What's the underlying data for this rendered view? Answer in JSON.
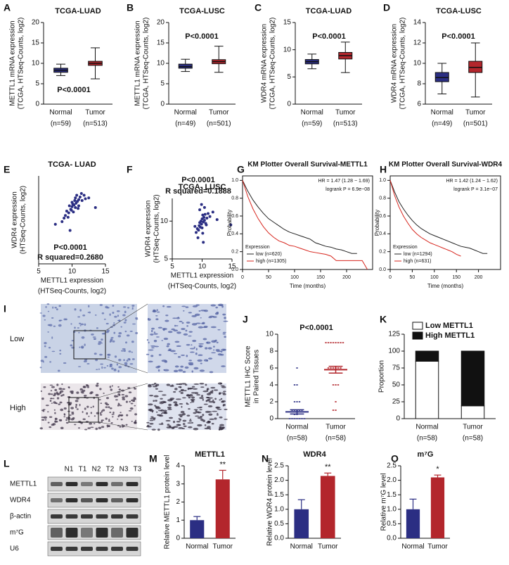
{
  "chart_data": [
    {
      "type": "box",
      "panel": "A",
      "title": "TCGA-LUAD",
      "ylabel": [
        "METTL1 mRNA expression",
        "(TCGA, HTSeq-Counts, log2)"
      ],
      "categories": [
        "Normal",
        "Tumor"
      ],
      "counts": [
        "(n=59)",
        "(n=513)"
      ],
      "colors": [
        "#2b2e83",
        "#b3262c"
      ],
      "boxes": [
        {
          "min": 7,
          "q1": 7.8,
          "median": 8.3,
          "q3": 8.8,
          "max": 9.8
        },
        {
          "min": 6.2,
          "q1": 9.5,
          "median": 10,
          "q3": 10.5,
          "max": 13.8
        }
      ],
      "ylim": [
        0,
        20
      ],
      "yticks": [
        0,
        5,
        10,
        15,
        20
      ],
      "annotations": [
        "P<0.0001"
      ]
    },
    {
      "type": "box",
      "panel": "B",
      "title": "TCGA-LUSC",
      "ylabel": [
        "METTL1 mRNA expression",
        "(TCGA, HTSeq-Counts, log2)"
      ],
      "categories": [
        "Normal",
        "Tumor"
      ],
      "counts": [
        "(n=49)",
        "(n=501)"
      ],
      "colors": [
        "#2b2e83",
        "#b3262c"
      ],
      "boxes": [
        {
          "min": 8,
          "q1": 8.8,
          "median": 9.2,
          "q3": 9.8,
          "max": 11
        },
        {
          "min": 7.8,
          "q1": 9.9,
          "median": 10.4,
          "q3": 10.9,
          "max": 14.2
        }
      ],
      "ylim": [
        0,
        20
      ],
      "yticks": [
        0,
        5,
        10,
        15,
        20
      ],
      "annotations": [
        "P<0.0001"
      ]
    },
    {
      "type": "box",
      "panel": "C",
      "title": "TCGA-LUAD",
      "ylabel": [
        "WDR4 mRNA expression",
        "(TCGA, HTSeq-Counts, log2)"
      ],
      "categories": [
        "Normal",
        "Tumor"
      ],
      "counts": [
        "(n=59)",
        "(n=513)"
      ],
      "colors": [
        "#2b2e83",
        "#b3262c"
      ],
      "boxes": [
        {
          "min": 6.5,
          "q1": 7.4,
          "median": 7.8,
          "q3": 8.2,
          "max": 9.2
        },
        {
          "min": 5.8,
          "q1": 8.3,
          "median": 8.9,
          "q3": 9.5,
          "max": 11.4
        }
      ],
      "ylim": [
        0,
        15
      ],
      "yticks": [
        0,
        5,
        10,
        15
      ],
      "annotations": [
        "P<0.0001"
      ]
    },
    {
      "type": "box",
      "panel": "D",
      "title": "TCGA-LUSC",
      "ylabel": [
        "WDR4 mRNA expression",
        "(TCGA, HTSeq-Counts, log2)"
      ],
      "categories": [
        "Normal",
        "Tumor"
      ],
      "counts": [
        "(n=49)",
        "(n=501)"
      ],
      "colors": [
        "#2b2e83",
        "#b3262c"
      ],
      "boxes": [
        {
          "min": 7,
          "q1": 8.2,
          "median": 8.6,
          "q3": 9.1,
          "max": 10
        },
        {
          "min": 6.7,
          "q1": 9.1,
          "median": 9.6,
          "q3": 10.2,
          "max": 12
        }
      ],
      "ylim": [
        6,
        14
      ],
      "yticks": [
        6,
        8,
        10,
        12,
        14
      ],
      "annotations": [
        "P<0.0001"
      ]
    },
    {
      "type": "scatter",
      "panel": "E",
      "title": "TCGA- LUAD",
      "ylabel": [
        "WDR4 expression",
        "(HTSeq-Counts, log2)"
      ],
      "xlabel": [
        "METTL1 expression",
        "(HTSeq-Counts, log2)"
      ],
      "color": "#2b2e83",
      "x": [
        8.5,
        9,
        9.2,
        9.5,
        9.6,
        9.8,
        10,
        10,
        10.1,
        10.2,
        10.3,
        10.4,
        10.5,
        10.5,
        10.6,
        10.8,
        11,
        11,
        11.2,
        11.5,
        11.8,
        12,
        9.4,
        9.9,
        10.7,
        10.9,
        8.8,
        11.4,
        12.5,
        7.5,
        13.5,
        9.7
      ],
      "values": [
        8.8,
        9.5,
        10,
        9.8,
        10.6,
        10.2,
        10.5,
        11,
        10.8,
        9.9,
        10.7,
        11.2,
        10.4,
        11.5,
        10.9,
        11.1,
        11.3,
        10.6,
        11.6,
        11.2,
        11.8,
        11.4,
        9.3,
        10.1,
        11.8,
        10.3,
        9.2,
        12,
        11.5,
        8.5,
        10.4,
        7.8
      ],
      "xlim": [
        5,
        15
      ],
      "xticks": [
        5,
        10,
        15
      ],
      "ylim": [
        4,
        14
      ],
      "annotations": [
        "P<0.0001",
        "R squared=0.2680"
      ]
    },
    {
      "type": "scatter",
      "panel": "F",
      "title": "TCGA- LUSC",
      "ylabel": [
        "WDR4 expression",
        "(HTSeq-Counts, log2)"
      ],
      "xlabel": [
        "METTL1 expression",
        "(HTSeq-Counts, log2)"
      ],
      "color": "#2b2e83",
      "x": [
        9,
        9.2,
        9.4,
        9.5,
        9.6,
        9.7,
        9.8,
        9.9,
        10,
        10,
        10.1,
        10.2,
        10.3,
        10.4,
        10.5,
        10.6,
        10.8,
        11,
        11.3,
        11.8,
        9.3,
        9.6,
        10.1,
        10.4,
        10.7,
        8.8,
        12.5,
        14.8,
        9.9,
        10.2
      ],
      "values": [
        8.5,
        9,
        8.8,
        9.4,
        9.8,
        9.2,
        10,
        9.6,
        10.3,
        9.1,
        10.8,
        9.9,
        10.5,
        10.1,
        10.9,
        9.7,
        10.4,
        11,
        10.6,
        11.2,
        7.8,
        11.5,
        8.4,
        11.8,
        9.5,
        9.3,
        10.2,
        9.5,
        12.2,
        7.2
      ],
      "xlim": [
        5,
        15
      ],
      "xticks": [
        5,
        10,
        15
      ],
      "ylim": [
        5,
        13
      ],
      "yticks": [
        5,
        10
      ],
      "annotations": [
        "P<0.0001",
        "R squared=0.1888"
      ]
    },
    {
      "type": "km",
      "panel": "G",
      "title": "KM Plotter Overall Survival-METTL1",
      "ylabel": "Probability",
      "xlabel": "Time (months)",
      "legend_title": "Expression",
      "x": [
        0,
        10,
        20,
        30,
        40,
        50,
        60,
        70,
        80,
        90,
        100,
        110,
        120,
        130,
        140,
        150,
        160,
        170,
        180,
        190,
        200,
        210,
        220,
        230,
        240
      ],
      "series": [
        {
          "name": "low (n=620)",
          "color": "#222222",
          "values": [
            1,
            0.88,
            0.78,
            0.7,
            0.63,
            0.57,
            0.53,
            0.49,
            0.45,
            0.42,
            0.4,
            0.38,
            0.36,
            0.34,
            0.3,
            0.28,
            0.26,
            0.25,
            0.23,
            0.22,
            0.2,
            0.18,
            0.18,
            null,
            null
          ]
        },
        {
          "name": "high (n=1305)",
          "color": "#d7261e",
          "values": [
            1,
            0.82,
            0.68,
            0.57,
            0.48,
            0.41,
            0.36,
            0.32,
            0.3,
            0.27,
            0.26,
            0.24,
            0.22,
            0.2,
            0.19,
            0.18,
            0.17,
            0.15,
            0.1,
            0.1,
            0.1,
            0.1,
            0.1,
            0.1,
            0
          ]
        }
      ],
      "xlim": [
        0,
        250
      ],
      "xticks": [
        0,
        50,
        100,
        150,
        200
      ],
      "ylim": [
        0,
        1.05
      ],
      "yticks": [
        {
          "value": 0,
          "label": "0.0"
        },
        {
          "value": 0.2,
          "label": "0.2"
        },
        {
          "value": 0.4,
          "label": "0.4"
        },
        {
          "value": 0.6,
          "label": "0.6"
        },
        {
          "value": 0.8,
          "label": "0.8"
        },
        {
          "value": 1,
          "label": "1.0"
        }
      ],
      "annotations": [
        "HR = 1.47 (1.28 − 1.69)",
        "logrank P = 6.9e−08"
      ]
    },
    {
      "type": "km",
      "panel": "H",
      "title": "KM Plotter Overall Survival-WDR4",
      "ylabel": "Probability",
      "xlabel": "Time (months)",
      "legend_title": "Expression",
      "x": [
        0,
        10,
        20,
        30,
        40,
        50,
        60,
        70,
        80,
        90,
        100,
        110,
        120,
        130,
        140,
        150,
        160,
        170,
        180,
        190,
        200,
        210,
        220,
        230,
        240
      ],
      "series": [
        {
          "name": "low (n=1294)",
          "color": "#222222",
          "values": [
            1,
            0.87,
            0.76,
            0.68,
            0.61,
            0.55,
            0.5,
            0.46,
            0.43,
            0.4,
            0.38,
            0.36,
            0.34,
            0.32,
            0.3,
            0.28,
            0.26,
            0.25,
            0.24,
            0.22,
            0.2,
            0.18,
            0.18,
            null,
            null
          ]
        },
        {
          "name": "high (n=631)",
          "color": "#d7261e",
          "values": [
            1,
            0.83,
            0.7,
            0.6,
            0.52,
            0.45,
            0.4,
            0.36,
            0.33,
            0.3,
            0.28,
            0.26,
            0.24,
            0.22,
            0.2,
            0.17,
            0.15,
            null,
            null,
            null,
            null,
            null,
            null,
            null,
            null
          ]
        }
      ],
      "xlim": [
        0,
        250
      ],
      "xticks": [
        0,
        50,
        100,
        150,
        200
      ],
      "ylim": [
        0,
        1.05
      ],
      "yticks": [
        {
          "value": 0,
          "label": "0.0"
        },
        {
          "value": 0.2,
          "label": "0.2"
        },
        {
          "value": 0.4,
          "label": "0.4"
        },
        {
          "value": 0.6,
          "label": "0.6"
        },
        {
          "value": 0.8,
          "label": "0.8"
        },
        {
          "value": 1,
          "label": "1.0"
        }
      ],
      "annotations": [
        "HR = 1.42 (1.24 − 1.62)",
        "logrank P = 3.1e−07"
      ]
    },
    {
      "type": "dot",
      "panel": "J",
      "ylabel": [
        "METTL1 IHC Score",
        "in Paired Tissues"
      ],
      "categories": [
        "Normal",
        "Tumor"
      ],
      "counts": [
        "(n=58)",
        "(n=58)"
      ],
      "colors": [
        "#2b2e83",
        "#b3262c"
      ],
      "points": [
        [
          0,
          0,
          0,
          0.5,
          0.5,
          1,
          1,
          1,
          1,
          0,
          0,
          2,
          2,
          2,
          4,
          4,
          6,
          1,
          0,
          0
        ],
        [
          9,
          9,
          9,
          9,
          9,
          9,
          9,
          9,
          6,
          6,
          6,
          6,
          6,
          6,
          4,
          4,
          4,
          2,
          1,
          1
        ]
      ],
      "means": [
        0.8,
        5.8
      ],
      "errors": [
        0.25,
        0.4
      ],
      "ylim": [
        0,
        10
      ],
      "yticks": [
        0,
        2,
        4,
        6,
        8,
        10
      ],
      "annotations": [
        "P<0.0001"
      ]
    },
    {
      "type": "stacked_bar",
      "panel": "K",
      "ylabel": "Proportion",
      "categories": [
        "Normal",
        "Tumor"
      ],
      "counts": [
        "(n=58)",
        "(n=58)"
      ],
      "series": [
        {
          "name": "Low METTL1",
          "color": "#ffffff",
          "values": [
            85,
            19
          ]
        },
        {
          "name": "High METTL1",
          "color": "#111111",
          "values": [
            15,
            81
          ]
        }
      ],
      "ylim": [
        0,
        125
      ],
      "yticks": [
        0,
        25,
        50,
        75,
        100,
        125
      ]
    },
    {
      "type": "bar",
      "panel": "M",
      "title": "METTL1",
      "ylabel": "Relative METTL1 protein level",
      "categories": [
        "Normal",
        "Tumor"
      ],
      "colors": [
        "#2b2e83",
        "#b3262c"
      ],
      "values": [
        1,
        3.25
      ],
      "errors": [
        0.2,
        0.5
      ],
      "significance": "**",
      "ylim": [
        0,
        4
      ],
      "yticks": [
        0,
        1,
        2,
        3,
        4
      ]
    },
    {
      "type": "bar",
      "panel": "N",
      "title": "WDR4",
      "ylabel": "Relative WDR4 protein level",
      "categories": [
        "Normal",
        "Tumor"
      ],
      "colors": [
        "#2b2e83",
        "#b3262c"
      ],
      "values": [
        1,
        2.15
      ],
      "errors": [
        0.33,
        0.1
      ],
      "significance": "**",
      "ylim": [
        0,
        2.5
      ],
      "yticks": [
        {
          "value": 0,
          "label": "0.0"
        },
        {
          "value": 0.5,
          "label": "0.5"
        },
        {
          "value": 1,
          "label": "1.0"
        },
        {
          "value": 1.5,
          "label": "1.5"
        },
        {
          "value": 2,
          "label": "2.0"
        },
        {
          "value": 2.5,
          "label": "2.5"
        }
      ]
    },
    {
      "type": "bar",
      "panel": "O",
      "title": "m⁷G",
      "ylabel": "Relative m⁷G level",
      "categories": [
        "Normal",
        "Tumor"
      ],
      "colors": [
        "#2b2e83",
        "#b3262c"
      ],
      "values": [
        1,
        2.1
      ],
      "errors": [
        0.35,
        0.08
      ],
      "significance": "*",
      "ylim": [
        0,
        2.5
      ],
      "yticks": [
        {
          "value": 0,
          "label": "0.0"
        },
        {
          "value": 0.5,
          "label": "0.5"
        },
        {
          "value": 1,
          "label": "1.0"
        },
        {
          "value": 1.5,
          "label": "1.5"
        },
        {
          "value": 2,
          "label": "2.0"
        },
        {
          "value": 2.5,
          "label": "2.5"
        }
      ]
    }
  ],
  "ihc": {
    "panel": "I",
    "rows": [
      "Low",
      "High"
    ]
  },
  "blot": {
    "panel": "L",
    "lanes": [
      "N1",
      "T1",
      "N2",
      "T2",
      "N3",
      "T3"
    ],
    "rows": [
      "METTL1",
      "WDR4",
      "β-actin",
      "m⁷G",
      "U6"
    ]
  }
}
